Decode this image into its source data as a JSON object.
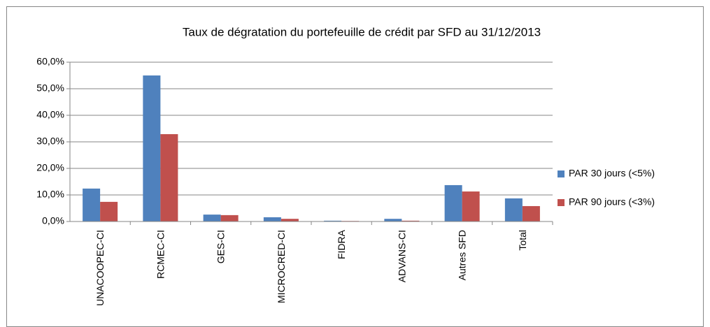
{
  "chart_data": {
    "type": "bar",
    "title": "Taux de dégratation du portefeuille de crédit par SFD au 31/12/2013",
    "categories": [
      "UNACOOPEC-CI",
      "RCMEC-CI",
      "GES-CI",
      "MICROCRED-CI",
      "FIDRA",
      "ADVANS-CI",
      "Autres SFD",
      "Total"
    ],
    "series": [
      {
        "name": "PAR 30 jours (<5%)",
        "color": "#4f81bd",
        "values": [
          12.4,
          55,
          2.6,
          1.6,
          0.3,
          1.0,
          13.7,
          8.7
        ]
      },
      {
        "name": "PAR 90 jours (<3%)",
        "color": "#c0504d",
        "values": [
          7.4,
          32.9,
          2.4,
          1.0,
          0.2,
          0.3,
          11.3,
          5.8
        ]
      }
    ],
    "ylim": [
      0,
      60
    ],
    "yticks": [
      {
        "value": 0,
        "label": "0,0%"
      },
      {
        "value": 10,
        "label": "10,0%"
      },
      {
        "value": 20,
        "label": "20,0%"
      },
      {
        "value": 30,
        "label": "30,0%"
      },
      {
        "value": 40,
        "label": "40,0%"
      },
      {
        "value": 50,
        "label": "50,0%"
      },
      {
        "value": 60,
        "label": "60,0%"
      }
    ],
    "grid": true,
    "legend": "right"
  }
}
